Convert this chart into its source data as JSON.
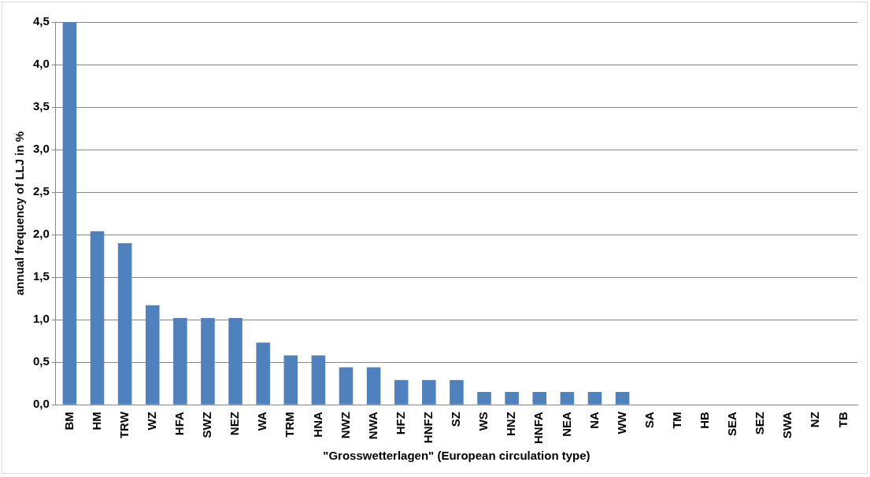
{
  "chart_data": {
    "type": "bar",
    "xlabel": "\"Grosswetterlagen\" (European circulation type)",
    "ylabel": "annual frequency of LLJ in %",
    "categories": [
      "BM",
      "HM",
      "TRW",
      "WZ",
      "HFA",
      "SWZ",
      "NEZ",
      "WA",
      "TRM",
      "HNA",
      "NWZ",
      "NWA",
      "HFZ",
      "HNFZ",
      "SZ",
      "WS",
      "HNZ",
      "HNFA",
      "NEA",
      "NA",
      "WW",
      "SA",
      "TM",
      "HB",
      "SEA",
      "SEZ",
      "SWA",
      "NZ",
      "TB"
    ],
    "values": [
      4.5,
      2.04,
      1.9,
      1.17,
      1.02,
      1.02,
      1.02,
      0.73,
      0.58,
      0.58,
      0.44,
      0.44,
      0.29,
      0.29,
      0.29,
      0.15,
      0.15,
      0.15,
      0.15,
      0.15,
      0.15,
      0,
      0,
      0,
      0,
      0,
      0,
      0,
      0
    ],
    "color": "#4f81bd",
    "ylim": [
      0,
      4.5
    ],
    "yticks": [
      {
        "value": 0,
        "label": "0,0"
      },
      {
        "value": 0.5,
        "label": "0,5"
      },
      {
        "value": 1,
        "label": "1,0"
      },
      {
        "value": 1.5,
        "label": "1,5"
      },
      {
        "value": 2,
        "label": "2,0"
      },
      {
        "value": 2.5,
        "label": "2,5"
      },
      {
        "value": 3,
        "label": "3,0"
      },
      {
        "value": 3.5,
        "label": "3,5"
      },
      {
        "value": 4,
        "label": "4,0"
      },
      {
        "value": 4.5,
        "label": "4,5"
      }
    ],
    "grid": "y",
    "legend": false
  }
}
